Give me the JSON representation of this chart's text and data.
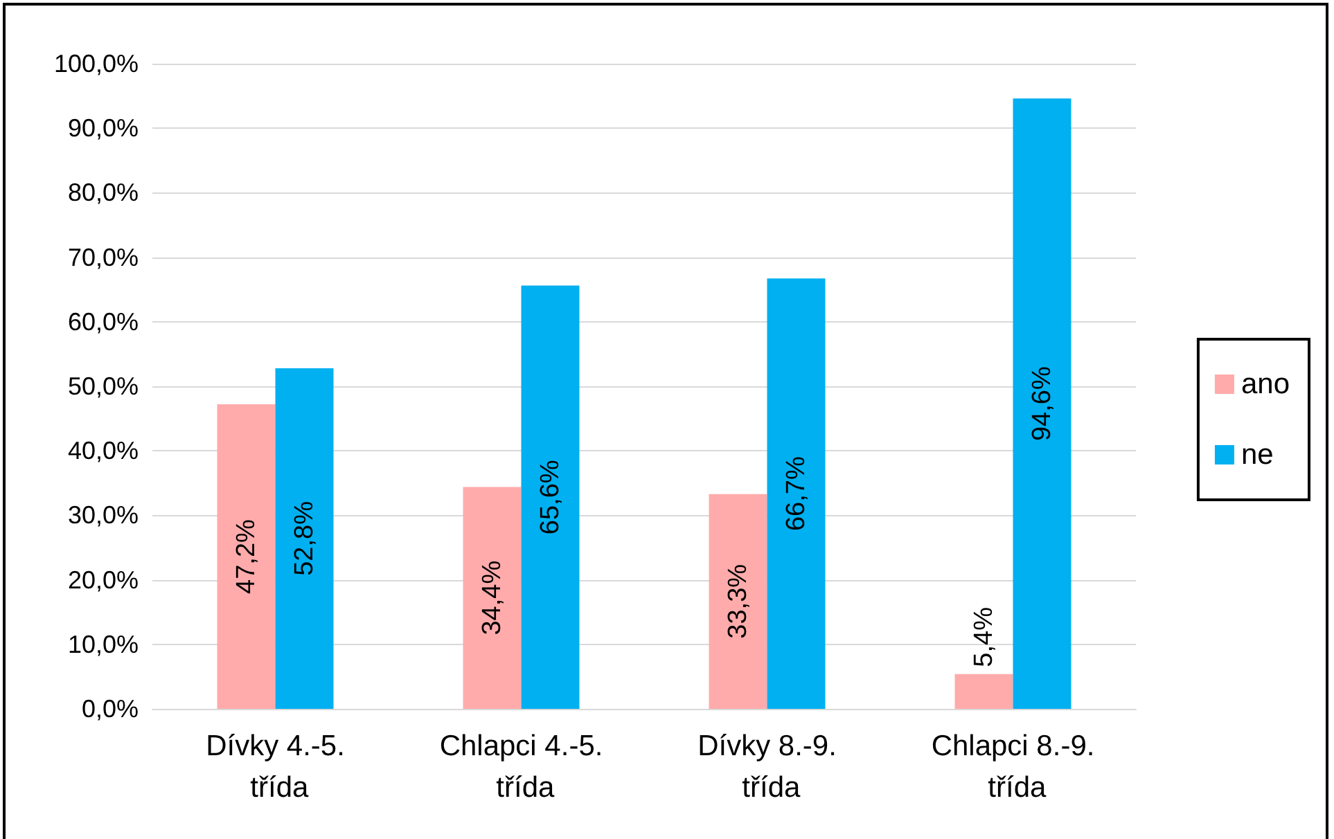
{
  "chart_data": {
    "type": "bar",
    "categories": [
      "Dívky 4.-5. třída",
      "Chlapci 4.-5. třída",
      "Dívky 8.-9. třída",
      "Chlapci 8.-9. třída"
    ],
    "series": [
      {
        "name": "ano",
        "color": "#ffabab",
        "values": [
          47.2,
          34.4,
          33.3,
          5.4
        ],
        "value_labels": [
          "47,2%",
          "34,4%",
          "33,3%",
          "5,4%"
        ]
      },
      {
        "name": "ne",
        "color": "#00b0f0",
        "values": [
          52.8,
          65.6,
          66.7,
          94.6
        ],
        "value_labels": [
          "52,8%",
          "65,6%",
          "66,7%",
          "94,6%"
        ]
      }
    ],
    "ylim": [
      0,
      100
    ],
    "yticks": [
      {
        "value": 0,
        "label": "0,0%"
      },
      {
        "value": 10,
        "label": "10,0%"
      },
      {
        "value": 20,
        "label": "20,0%"
      },
      {
        "value": 30,
        "label": "30,0%"
      },
      {
        "value": 40,
        "label": "40,0%"
      },
      {
        "value": 50,
        "label": "50,0%"
      },
      {
        "value": 60,
        "label": "60,0%"
      },
      {
        "value": 70,
        "label": "70,0%"
      },
      {
        "value": 80,
        "label": "80,0%"
      },
      {
        "value": 90,
        "label": "90,0%"
      },
      {
        "value": 100,
        "label": "100,0%"
      }
    ],
    "grid": "y",
    "legend": "right"
  }
}
